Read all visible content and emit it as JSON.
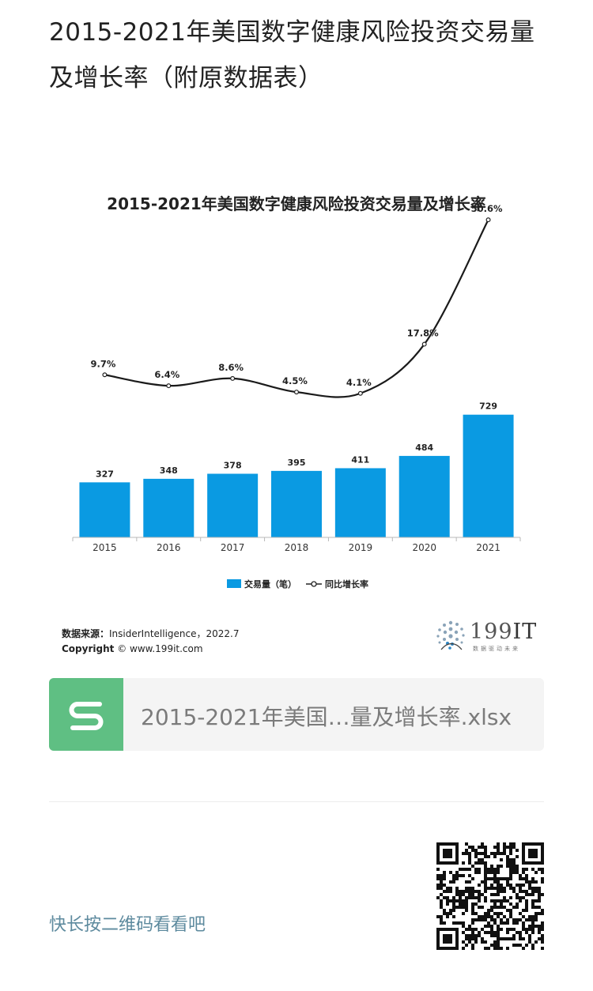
{
  "article": {
    "title": "2015-2021年美国数字健康风险投资交易量及增长率（附原数据表）"
  },
  "chart_data": {
    "type": "bar",
    "title": "2015-2021年美国数字健康风险投资交易量及增长率",
    "categories": [
      "2015",
      "2016",
      "2017",
      "2018",
      "2019",
      "2020",
      "2021"
    ],
    "series": [
      {
        "name": "交易量（笔）",
        "type": "bar",
        "values": [
          327,
          348,
          378,
          395,
          411,
          484,
          729
        ]
      },
      {
        "name": "同比增长率",
        "type": "line",
        "values": [
          9.7,
          6.4,
          8.6,
          4.5,
          4.1,
          17.8,
          50.6
        ],
        "labels": [
          "9.7%",
          "6.4%",
          "8.6%",
          "4.5%",
          "4.1%",
          "17.8%",
          "50.6%"
        ]
      }
    ],
    "legend_position": "bottom",
    "colors": {
      "bar": "#0a9ae2",
      "line": "#222222"
    },
    "source_label": "数据来源：",
    "source_text": "InsiderIntelligence，2022.7",
    "copyright_label": "Copyright",
    "copyright_text": "© www.199it.com"
  },
  "brand": {
    "name_prefix": "199",
    "name_suffix": "IT",
    "tagline": "数据驱动未来"
  },
  "attachment": {
    "icon": "spreadsheet-s-icon",
    "filename": "2015-2021年美国…量及增长率.xlsx",
    "color": "#5fbf83"
  },
  "qr": {
    "hint": "快长按二维码看看吧",
    "icon": "qr-code-icon"
  }
}
